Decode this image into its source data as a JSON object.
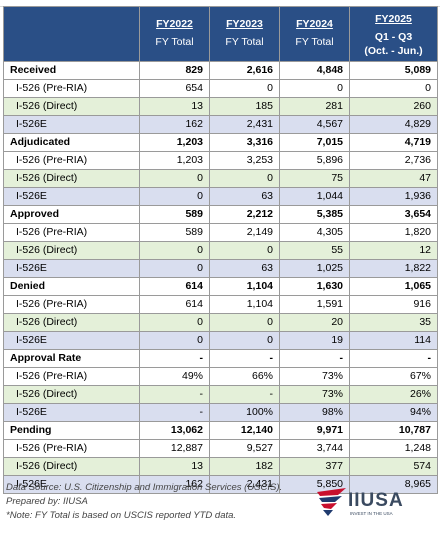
{
  "header": {
    "columns": [
      {
        "fy": "FY2022",
        "sub1": "FY Total",
        "sub2": ""
      },
      {
        "fy": "FY2023",
        "sub1": "FY Total",
        "sub2": ""
      },
      {
        "fy": "FY2024",
        "sub1": "FY Total",
        "sub2": ""
      },
      {
        "fy": "FY2025",
        "sub1": "Q1 - Q3",
        "sub2": "(Oct. - Jun.)"
      }
    ]
  },
  "sections": [
    {
      "label": "Received",
      "values": [
        "829",
        "2,616",
        "4,848",
        "5,089"
      ],
      "rows": [
        {
          "label": "I-526 (Pre-RIA)",
          "values": [
            "654",
            "0",
            "0",
            "0"
          ]
        },
        {
          "label": "I-526 (Direct)",
          "values": [
            "13",
            "185",
            "281",
            "260"
          ]
        },
        {
          "label": "I-526E",
          "values": [
            "162",
            "2,431",
            "4,567",
            "4,829"
          ]
        }
      ]
    },
    {
      "label": "Adjudicated",
      "values": [
        "1,203",
        "3,316",
        "7,015",
        "4,719"
      ],
      "rows": [
        {
          "label": "I-526 (Pre-RIA)",
          "values": [
            "1,203",
            "3,253",
            "5,896",
            "2,736"
          ]
        },
        {
          "label": "I-526 (Direct)",
          "values": [
            "0",
            "0",
            "75",
            "47"
          ]
        },
        {
          "label": "I-526E",
          "values": [
            "0",
            "63",
            "1,044",
            "1,936"
          ]
        }
      ]
    },
    {
      "label": "Approved",
      "values": [
        "589",
        "2,212",
        "5,385",
        "3,654"
      ],
      "rows": [
        {
          "label": "I-526 (Pre-RIA)",
          "values": [
            "589",
            "2,149",
            "4,305",
            "1,820"
          ]
        },
        {
          "label": "I-526 (Direct)",
          "values": [
            "0",
            "0",
            "55",
            "12"
          ]
        },
        {
          "label": "I-526E",
          "values": [
            "0",
            "63",
            "1,025",
            "1,822"
          ]
        }
      ]
    },
    {
      "label": "Denied",
      "values": [
        "614",
        "1,104",
        "1,630",
        "1,065"
      ],
      "rows": [
        {
          "label": "I-526 (Pre-RIA)",
          "values": [
            "614",
            "1,104",
            "1,591",
            "916"
          ]
        },
        {
          "label": "I-526 (Direct)",
          "values": [
            "0",
            "0",
            "20",
            "35"
          ]
        },
        {
          "label": "I-526E",
          "values": [
            "0",
            "0",
            "19",
            "114"
          ]
        }
      ]
    },
    {
      "label": "Approval Rate",
      "values": [
        "-",
        "-",
        "-",
        "-"
      ],
      "rows": [
        {
          "label": "I-526 (Pre-RIA)",
          "values": [
            "49%",
            "66%",
            "73%",
            "67%"
          ]
        },
        {
          "label": "I-526 (Direct)",
          "values": [
            "-",
            "-",
            "73%",
            "26%"
          ]
        },
        {
          "label": "I-526E",
          "values": [
            "-",
            "100%",
            "98%",
            "94%"
          ]
        }
      ]
    },
    {
      "label": "Pending",
      "values": [
        "13,062",
        "12,140",
        "9,971",
        "10,787"
      ],
      "rows": [
        {
          "label": "I-526 (Pre-RIA)",
          "values": [
            "12,887",
            "9,527",
            "3,744",
            "1,248"
          ]
        },
        {
          "label": "I-526 (Direct)",
          "values": [
            "13",
            "182",
            "377",
            "574"
          ]
        },
        {
          "label": "I-526E",
          "values": [
            "162",
            "2,431",
            "5,850",
            "8,965"
          ]
        }
      ]
    }
  ],
  "footer": {
    "source": "Data Source: U.S. Citizenship and Immigration Services (USCIS).",
    "prepared": "Prepared by: IIUSA",
    "note": "*Note: FY Total is based on USCIS reported YTD data."
  },
  "logo": {
    "name": "IIUSA",
    "tagline": "INVEST IN THE USA",
    "colors": {
      "red": "#c8102e",
      "blue": "#1f3a6e",
      "text": "#3a4a60"
    }
  },
  "colors": {
    "header_bg": "#2a4f86",
    "row_direct_bg": "#e4f0d9",
    "row_e_bg": "#d9deef"
  }
}
